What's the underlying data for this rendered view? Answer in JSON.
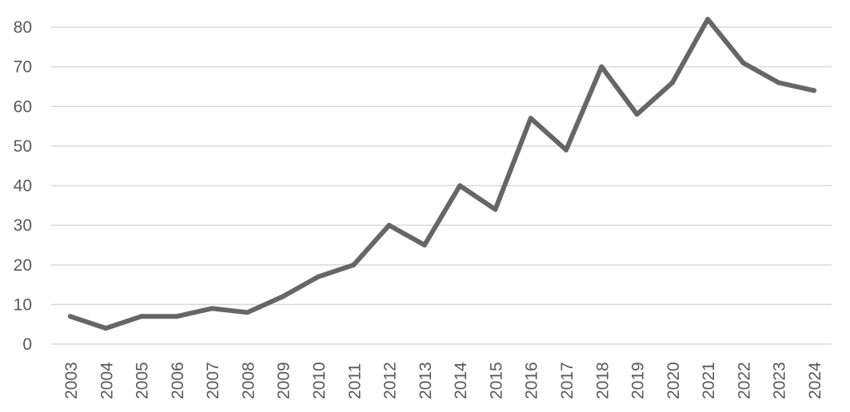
{
  "chart_data": {
    "type": "line",
    "title": "",
    "xlabel": "",
    "ylabel": "",
    "categories": [
      "2003",
      "2004",
      "2005",
      "2006",
      "2007",
      "2008",
      "2009",
      "2010",
      "2011",
      "2012",
      "2013",
      "2014",
      "2015",
      "2016",
      "2017",
      "2018",
      "2019",
      "2020",
      "2021",
      "2022",
      "2023",
      "2024"
    ],
    "series": [
      {
        "values": [
          7,
          4,
          7,
          7,
          9,
          8,
          12,
          17,
          20,
          30,
          25,
          40,
          34,
          57,
          49,
          70,
          58,
          66,
          82,
          71,
          66,
          64
        ]
      }
    ],
    "ylim": [
      0,
      80
    ],
    "yticks": [
      0,
      10,
      20,
      30,
      40,
      50,
      60,
      70,
      80
    ],
    "grid": true,
    "legend": "none",
    "colors": {
      "line": "#666666",
      "grid": "#d9d9d9",
      "text": "#595959"
    }
  }
}
